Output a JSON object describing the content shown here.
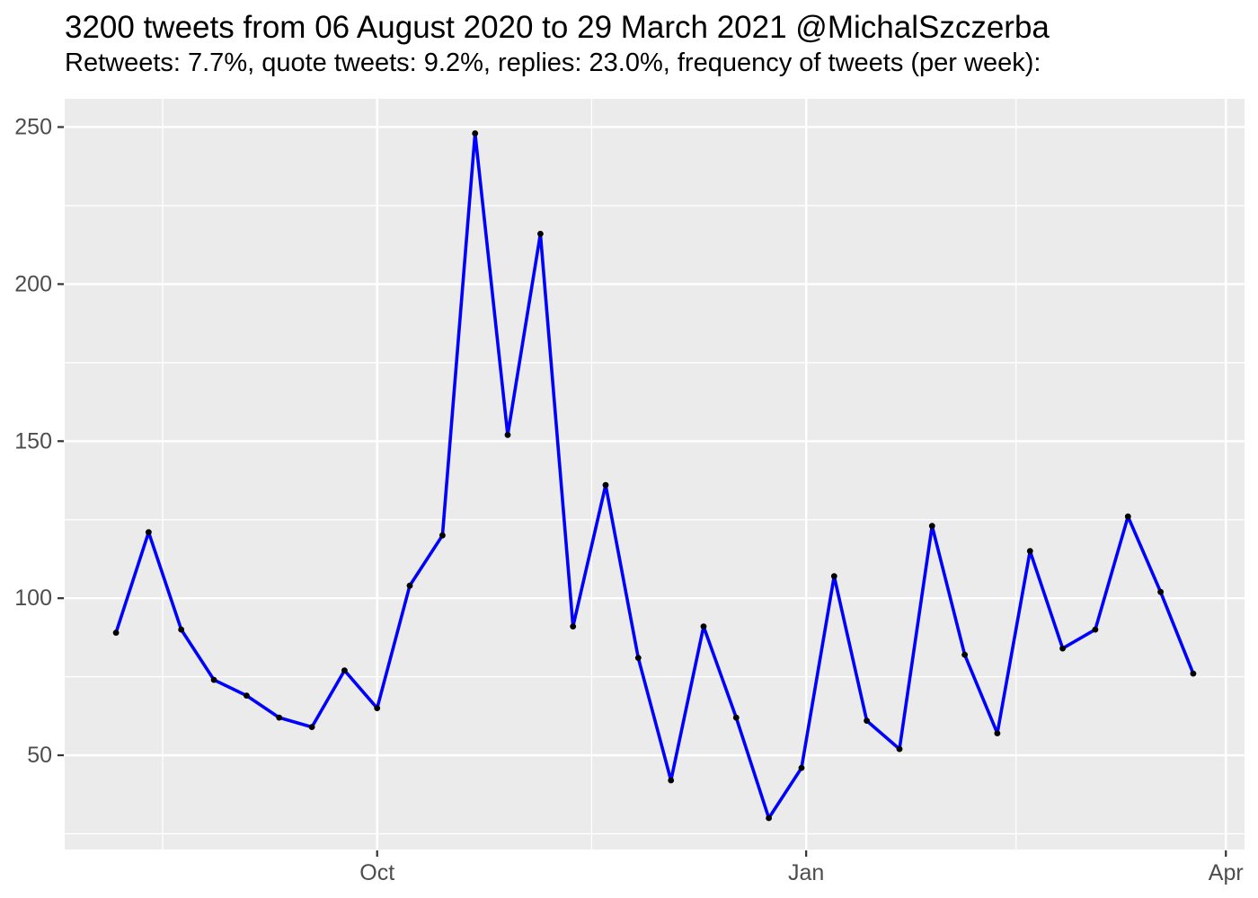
{
  "chart_data": {
    "type": "line",
    "title": "3200 tweets from 06 August 2020 to 29 March 2021 @MichalSzczerba",
    "subtitle": "Retweets: 7.7%, quote tweets: 9.2%, replies: 23.0%, frequency of tweets (per week):",
    "xlabel": "",
    "ylabel": "",
    "legend": false,
    "grid": true,
    "series": [
      {
        "name": "tweets-per-week",
        "x": [
          "2020-08-06",
          "2020-08-13",
          "2020-08-20",
          "2020-08-27",
          "2020-09-03",
          "2020-09-10",
          "2020-09-17",
          "2020-09-24",
          "2020-10-01",
          "2020-10-08",
          "2020-10-15",
          "2020-10-22",
          "2020-10-29",
          "2020-11-05",
          "2020-11-12",
          "2020-11-19",
          "2020-11-26",
          "2020-12-03",
          "2020-12-10",
          "2020-12-17",
          "2020-12-24",
          "2020-12-31",
          "2021-01-07",
          "2021-01-14",
          "2021-01-21",
          "2021-01-28",
          "2021-02-04",
          "2021-02-11",
          "2021-02-18",
          "2021-02-25",
          "2021-03-04",
          "2021-03-11",
          "2021-03-18",
          "2021-03-25"
        ],
        "values": [
          89,
          121,
          90,
          74,
          69,
          62,
          59,
          77,
          65,
          104,
          120,
          248,
          152,
          216,
          91,
          136,
          81,
          42,
          91,
          62,
          30,
          46,
          107,
          61,
          52,
          123,
          82,
          57,
          115,
          84,
          90,
          126,
          102,
          76
        ]
      }
    ],
    "x_major_ticks": [
      {
        "date": "2020-10-01",
        "label": "Oct"
      },
      {
        "date": "2021-01-01",
        "label": "Jan"
      },
      {
        "date": "2021-04-01",
        "label": "Apr"
      }
    ],
    "x_minor_gridlines": [
      "2020-08-16",
      "2020-11-16",
      "2021-02-15"
    ],
    "y_major_ticks": [
      50,
      100,
      150,
      200,
      250
    ],
    "y_minor_gridlines": [
      25,
      75,
      125,
      175,
      225
    ],
    "ylim": [
      20,
      259
    ],
    "xlim": [
      "2020-07-26",
      "2021-04-05"
    ],
    "style": {
      "line_color": "#0000FF",
      "point_color": "#000000",
      "panel_bg": "#EBEBEB",
      "grid_color": "#FFFFFF",
      "axis_text_color": "#4D4D4D",
      "tick_mark_color": "#333333",
      "title_color": "#000000",
      "background": "#FFFFFF"
    }
  }
}
